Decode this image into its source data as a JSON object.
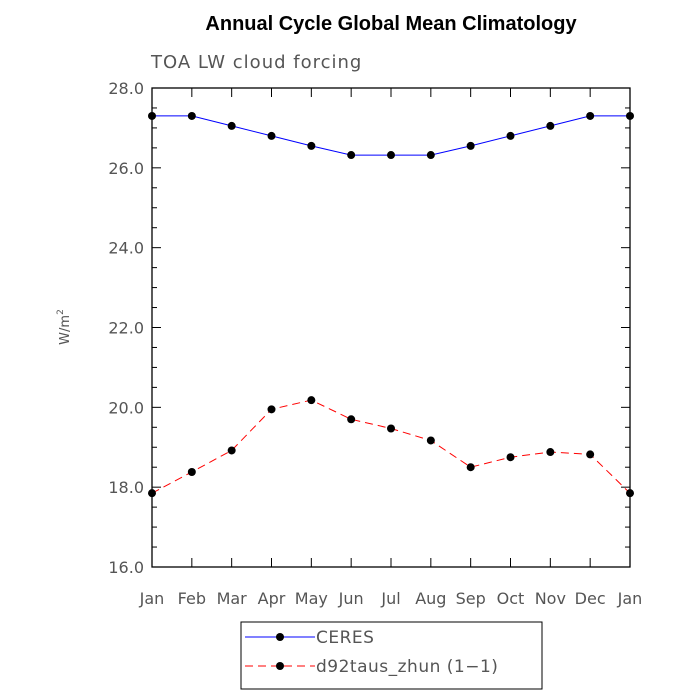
{
  "chart_data": {
    "type": "line",
    "title": "Annual Cycle Global Mean Climatology",
    "subtitle": "TOA LW cloud forcing",
    "ylabel": "W/m",
    "ylabel_superscript": "2",
    "xlabel": "",
    "categories": [
      "Jan",
      "Feb",
      "Mar",
      "Apr",
      "May",
      "Jun",
      "Jul",
      "Aug",
      "Sep",
      "Oct",
      "Nov",
      "Dec",
      "Jan"
    ],
    "ylim": [
      16.0,
      28.0
    ],
    "yticks": [
      "16.0",
      "18.0",
      "20.0",
      "22.0",
      "24.0",
      "26.0",
      "28.0"
    ],
    "grid": false,
    "legend_position": "bottom-center",
    "series": [
      {
        "name": "CERES",
        "color": "#0000ff",
        "style": "solid",
        "marker": "circle",
        "values": [
          27.3,
          27.3,
          27.05,
          26.8,
          26.55,
          26.32,
          26.32,
          26.32,
          26.55,
          26.8,
          27.05,
          27.3,
          27.3
        ]
      },
      {
        "name": "d92taus_zhun (1−1)",
        "color": "#ff0000",
        "style": "dashed",
        "marker": "circle",
        "values": [
          17.85,
          18.38,
          18.92,
          19.95,
          20.18,
          19.7,
          19.47,
          19.17,
          18.5,
          18.75,
          18.88,
          18.82,
          17.85
        ]
      }
    ]
  }
}
